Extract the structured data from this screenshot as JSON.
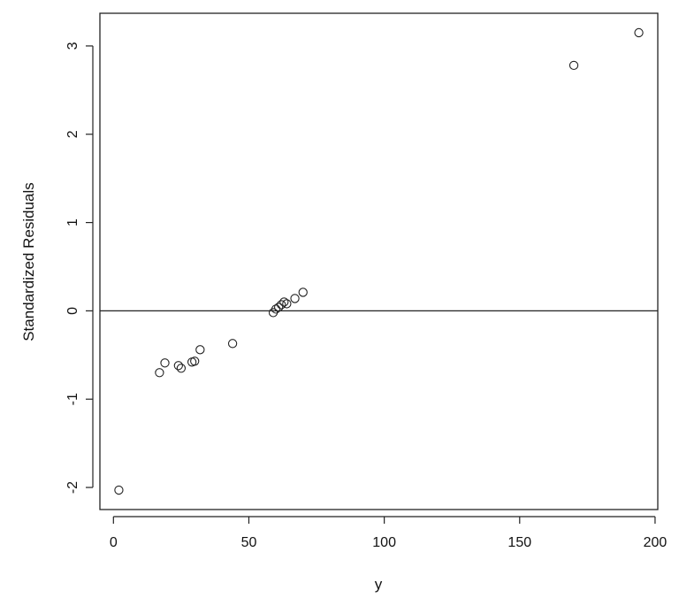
{
  "chart_data": {
    "type": "scatter",
    "xlabel": "y",
    "ylabel": "Standardized Residuals",
    "xlim": [
      -5,
      201
    ],
    "ylim": [
      -2.25,
      3.37
    ],
    "x_ticks": [
      0,
      50,
      100,
      150,
      200
    ],
    "y_ticks": [
      -2,
      -1,
      0,
      1,
      2,
      3
    ],
    "x_tick_labels": [
      "0",
      "50",
      "100",
      "150",
      "200"
    ],
    "y_tick_labels": [
      "-2",
      "-1",
      "0",
      "1",
      "2",
      "3"
    ],
    "reference_line_y": 0,
    "grid": false,
    "points": [
      {
        "x": 2,
        "y": -2.03
      },
      {
        "x": 17,
        "y": -0.7
      },
      {
        "x": 19,
        "y": -0.59
      },
      {
        "x": 24,
        "y": -0.62
      },
      {
        "x": 25,
        "y": -0.65
      },
      {
        "x": 29,
        "y": -0.58
      },
      {
        "x": 30,
        "y": -0.57
      },
      {
        "x": 32,
        "y": -0.44
      },
      {
        "x": 44,
        "y": -0.37
      },
      {
        "x": 59,
        "y": -0.02
      },
      {
        "x": 60,
        "y": 0.02
      },
      {
        "x": 61,
        "y": 0.04
      },
      {
        "x": 62,
        "y": 0.07
      },
      {
        "x": 63,
        "y": 0.1
      },
      {
        "x": 64,
        "y": 0.08
      },
      {
        "x": 67,
        "y": 0.14
      },
      {
        "x": 70,
        "y": 0.21
      },
      {
        "x": 170,
        "y": 2.78
      },
      {
        "x": 194,
        "y": 3.15
      }
    ]
  }
}
